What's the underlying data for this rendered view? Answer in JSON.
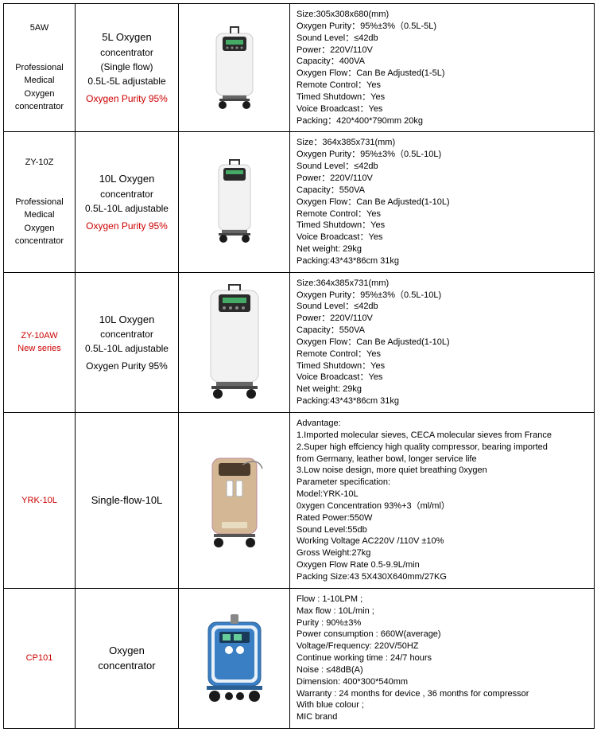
{
  "rows": [
    {
      "model_lines": [
        "5AW",
        "",
        "Professional",
        "Medical",
        "Oxygen",
        "concentrator"
      ],
      "model_red": false,
      "desc": {
        "title": "5L Oxygen",
        "sub1": "concentrator",
        "sub2": "(Single flow)",
        "sub3": "0.5L-5L adjustable",
        "purity": "Oxygen Purity 95%",
        "purity_red": true
      },
      "img": "device_white_short",
      "specs": [
        "Size:305x308x680(mm)",
        "Oxygen Purity：95%±3%（0.5L-5L)",
        "Sound Level：≤42db",
        "Power：220V/110V",
        " Capacity：400VA",
        "Oxygen Flow：Can Be Adjusted(1-5L)",
        "Remote Control：Yes",
        "Timed Shutdown：Yes",
        "Voice Broadcast：Yes",
        "Packing：420*400*790mm   20kg"
      ]
    },
    {
      "model_lines": [
        "ZY-10Z",
        "",
        "Professional",
        "Medical",
        "Oxygen",
        "concentrator"
      ],
      "model_red": false,
      "desc": {
        "title": "10L Oxygen",
        "sub1": "concentrator",
        "sub2": "",
        "sub3": "0.5L-10L adjustable",
        "purity": "Oxygen Purity 95%",
        "purity_red": true
      },
      "img": "device_white_tall",
      "specs": [
        "Size：364x385x731(mm)",
        "Oxygen Purity：95%±3%（0.5L-10L)",
        "Sound Level：≤42db",
        " Power：220V/110V",
        "Capacity：550VA",
        " Oxygen Flow：Can Be Adjusted(1-10L)",
        "Remote Control：Yes",
        "Timed Shutdown：Yes",
        "Voice Broadcast：Yes",
        "Net weight: 29kg",
        "Packing:43*43*86cm 31kg"
      ]
    },
    {
      "model_lines": [
        "ZY-10AW",
        "New series"
      ],
      "model_red": true,
      "desc": {
        "title": "10L Oxygen",
        "sub1": "concentrator",
        "sub2": "",
        "sub3": "0.5L-10L adjustable",
        "purity": "Oxygen Purity 95%",
        "purity_red": false
      },
      "img": "device_white_big",
      "specs": [
        "Size:364x385x731(mm)",
        "Oxygen Purity：95%±3%（0.5L-10L)",
        "Sound Level：≤42db",
        " Power：220V/110V",
        "Capacity：550VA",
        " Oxygen Flow：Can Be Adjusted(1-10L)",
        "Remote Control：Yes",
        "Timed Shutdown：Yes",
        "Voice Broadcast：Yes",
        "Net weight: 29kg",
        "Packing:43*43*86cm 31kg"
      ]
    },
    {
      "model_lines": [
        "YRK-10L"
      ],
      "model_red": true,
      "desc": {
        "title": "Single-flow-10L",
        "sub1": "",
        "sub2": "",
        "sub3": "",
        "purity": "",
        "purity_red": false
      },
      "img": "device_beige",
      "specs": [
        "Advantage:",
        "1.Imported molecular sieves, CECA molecular sieves from France",
        "2.Super high effciency high quality compressor, bearing imported",
        "from Germany, leather bowl, longer service life",
        "3.Low noise design, more quiet breathing 0xygen",
        "Parameter specification:",
        "Model:YRK-10L",
        "0xygen Concentration 93%+3（ml/ml）",
        "Rated Power:550W",
        "Sound Level:55db",
        "Working Voltage AC220V /110V ±10%",
        "Gross Weight:27kg",
        "Oxygen Flow Rate 0.5-9.9L/min",
        "Packing Size:43 5X430X640mm/27KG"
      ]
    },
    {
      "model_lines": [
        "CP101"
      ],
      "model_red": true,
      "desc": {
        "title": "Oxygen concentrator",
        "sub1": "",
        "sub2": "",
        "sub3": "",
        "purity": "",
        "purity_red": false
      },
      "img": "device_blue",
      "specs": [
        "Flow : 1-10LPM ;",
        "Max flow : 10L/min ;",
        "Purity : 90%±3%",
        "Power consumption : 660W(average)",
        "Voltage/Frequency: 220V/50HZ",
        "Continue working time : 24/7 hours",
        "Noise : ≤48dB(A)",
        "Dimension: 400*300*540mm",
        "Warranty : 24 months for device , 36 months for compressor",
        "With blue colour ;",
        "MIC brand"
      ]
    }
  ],
  "colors": {
    "border": "#000000",
    "red_text": "#cc0000",
    "device_white": "#f2f2f2",
    "device_panel": "#2a2a2a",
    "device_beige": "#d4b896",
    "device_blue": "#3a7fc4",
    "wheel": "#1a1a1a"
  }
}
